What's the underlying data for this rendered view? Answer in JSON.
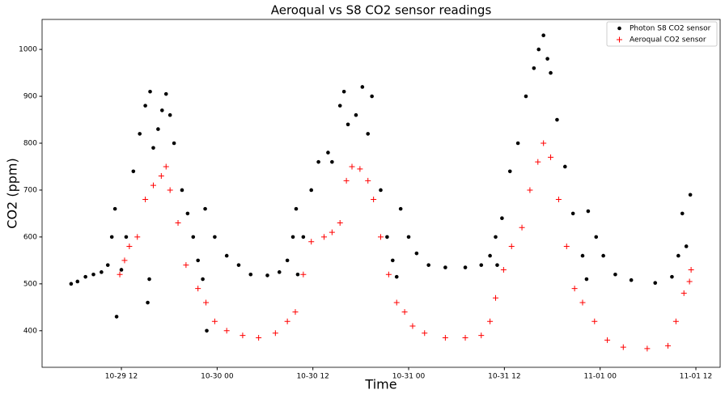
{
  "chart_data": {
    "type": "scatter",
    "title": "Aeroqual vs S8 CO2 sensor readings",
    "x_label": "Time",
    "y_label": "CO2 (ppm)",
    "xlim": [
      2.06,
      87.04
    ],
    "ylim": [
      322,
      1064
    ],
    "xticks": [
      {
        "value": 12,
        "label": "10-29 12"
      },
      {
        "value": 24,
        "label": "10-30 00"
      },
      {
        "value": 36,
        "label": "10-30 12"
      },
      {
        "value": 48,
        "label": "10-31 00"
      },
      {
        "value": 60,
        "label": "10-31 12"
      },
      {
        "value": 72,
        "label": "11-01 00"
      },
      {
        "value": 84,
        "label": "11-01 12"
      }
    ],
    "yticks": [
      400,
      500,
      600,
      700,
      800,
      900,
      1000
    ],
    "legend": "upper right",
    "series": [
      {
        "name": "Photon S8 CO2 sensor",
        "color": "#000000",
        "marker": "dot",
        "x": [
          5.7,
          6.5,
          7.5,
          8.5,
          9.5,
          10.3,
          10.8,
          11.2,
          12,
          12.6,
          13.5,
          14.3,
          15,
          15.6,
          16,
          16.6,
          17.1,
          17.6,
          18.1,
          18.6,
          19.6,
          20.3,
          21,
          21.6,
          22.2,
          22.5,
          23.7,
          25.2,
          26.7,
          28.2,
          30.3,
          31.8,
          32.8,
          33.5,
          33.9,
          34.1,
          34.8,
          35.8,
          36.7,
          37.9,
          38.4,
          39.4,
          39.9,
          40.4,
          41.4,
          42.2,
          42.9,
          43.4,
          44.5,
          45.3,
          46,
          46.5,
          47,
          48,
          49,
          50.5,
          52.6,
          55.1,
          57.1,
          58.2,
          58.9,
          59.1,
          59.7,
          60.7,
          61.7,
          62.7,
          63.7,
          64.3,
          64.9,
          65.4,
          65.8,
          66.6,
          67.6,
          68.6,
          69.8,
          70.3,
          70.5,
          71.5,
          72.4,
          73.9,
          75.9,
          78.9,
          81,
          81.8,
          82.3,
          82.8,
          83.3,
          11.4,
          15.3,
          15.5,
          22.7
        ],
        "values": [
          500,
          505,
          515,
          520,
          525,
          540,
          600,
          660,
          530,
          600,
          740,
          820,
          880,
          910,
          790,
          830,
          870,
          905,
          860,
          800,
          700,
          650,
          600,
          550,
          510,
          660,
          600,
          560,
          540,
          520,
          518,
          525,
          550,
          600,
          660,
          520,
          600,
          700,
          760,
          780,
          760,
          880,
          910,
          840,
          860,
          920,
          820,
          900,
          700,
          600,
          550,
          515,
          660,
          600,
          565,
          540,
          535,
          535,
          540,
          560,
          600,
          540,
          640,
          740,
          800,
          900,
          960,
          1000,
          1030,
          980,
          950,
          850,
          750,
          650,
          560,
          510,
          655,
          600,
          560,
          520,
          508,
          502,
          515,
          560,
          650,
          580,
          690,
          430,
          460,
          510,
          400
        ]
      },
      {
        "name": "Aeroqual CO2 sensor",
        "color": "#ff0000",
        "marker": "plus",
        "x": [
          11.8,
          12.4,
          13,
          14,
          15,
          16,
          17,
          17.6,
          18.1,
          19.1,
          20.1,
          21.6,
          22.6,
          23.7,
          25.2,
          27.2,
          29.2,
          31.3,
          32.8,
          33.8,
          34.8,
          35.8,
          37.4,
          38.4,
          39.4,
          40.2,
          40.9,
          41.9,
          42.9,
          43.6,
          44.5,
          45.5,
          46.5,
          47.5,
          48.5,
          50,
          52.6,
          55.1,
          57.1,
          58.2,
          58.9,
          59.9,
          60.9,
          62.2,
          63.2,
          64.2,
          64.9,
          65.8,
          66.8,
          67.8,
          68.8,
          69.8,
          71.3,
          72.9,
          74.9,
          77.9,
          80.5,
          81.5,
          82.5,
          83.2,
          83.4
        ],
        "values": [
          520,
          550,
          580,
          600,
          680,
          710,
          730,
          750,
          700,
          630,
          540,
          490,
          460,
          420,
          400,
          390,
          385,
          395,
          420,
          440,
          520,
          590,
          600,
          610,
          630,
          720,
          750,
          745,
          720,
          680,
          600,
          520,
          460,
          440,
          410,
          395,
          385,
          385,
          390,
          420,
          470,
          530,
          580,
          620,
          700,
          760,
          800,
          770,
          680,
          580,
          490,
          460,
          420,
          380,
          365,
          362,
          368,
          420,
          480,
          505,
          530
        ]
      }
    ]
  }
}
